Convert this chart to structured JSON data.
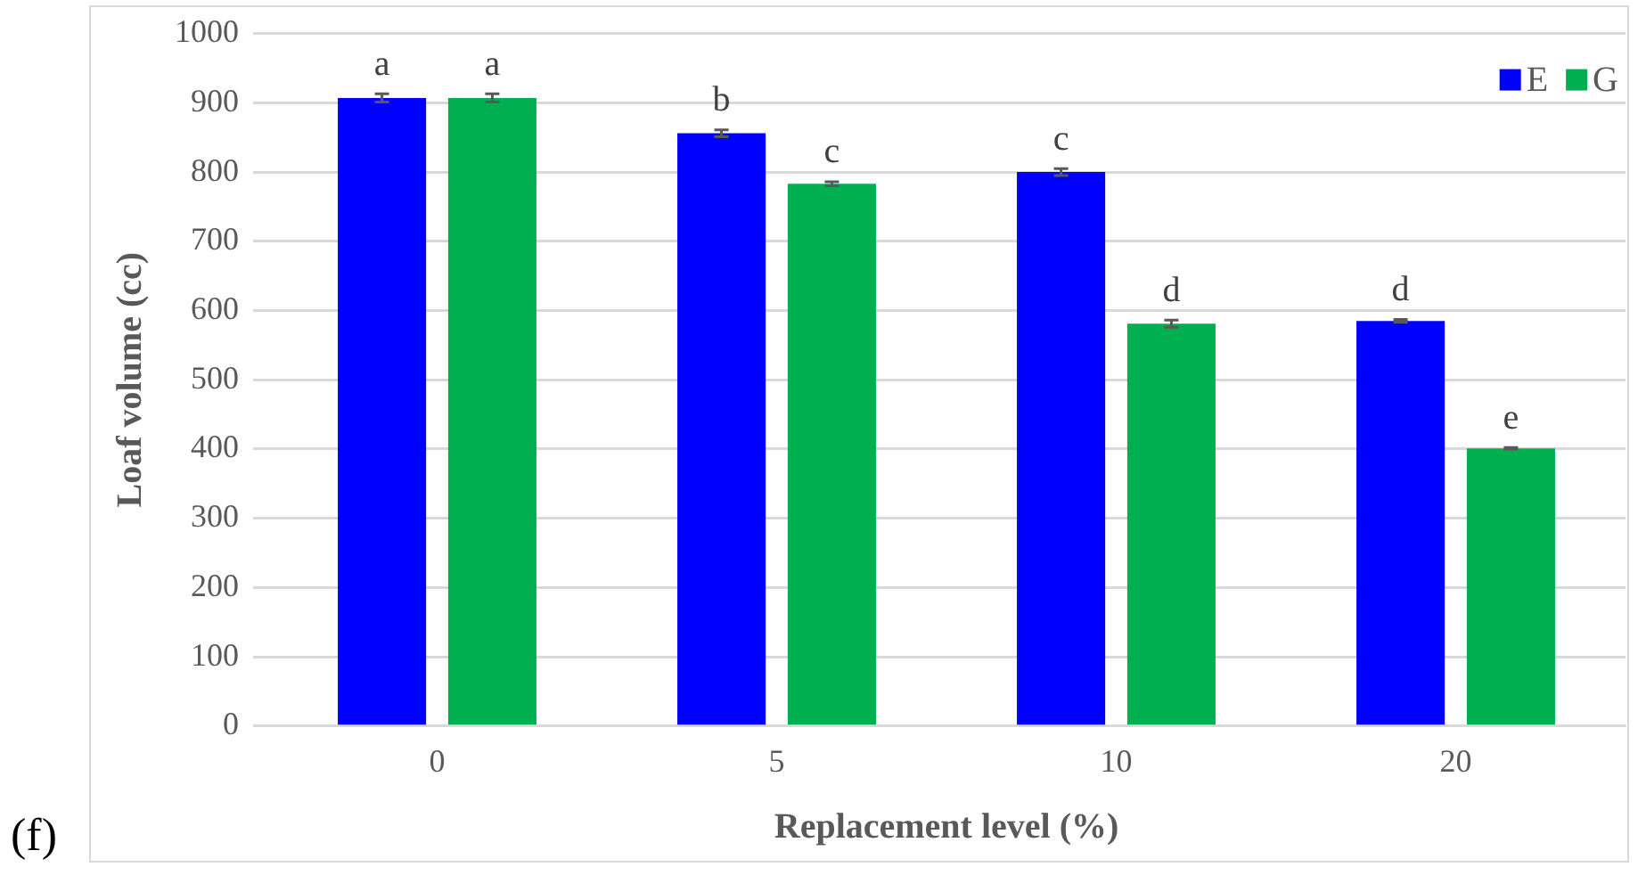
{
  "chart_data": {
    "type": "bar",
    "xlabel": "Replacement level (%)",
    "ylabel": "Loaf volume (cc)",
    "annotations": [
      "(f)"
    ],
    "categories": [
      "0",
      "5",
      "10",
      "20"
    ],
    "series": [
      {
        "name": "E",
        "color": "#0000ff",
        "values": [
          907,
          856,
          800,
          585
        ],
        "errors": [
          6,
          5,
          5,
          2
        ],
        "value_labels": [
          "a",
          "b",
          "c",
          "d"
        ]
      },
      {
        "name": "G",
        "color": "#00b050",
        "values": [
          907,
          783,
          581,
          401
        ],
        "errors": [
          6,
          3,
          5,
          1
        ],
        "value_labels": [
          "a",
          "c",
          "d",
          "e"
        ]
      }
    ],
    "ylim": [
      0,
      1000
    ],
    "yticks": [
      0,
      100,
      200,
      300,
      400,
      500,
      600,
      700,
      800,
      900,
      1000
    ],
    "grid": "y",
    "legend": "top right"
  }
}
